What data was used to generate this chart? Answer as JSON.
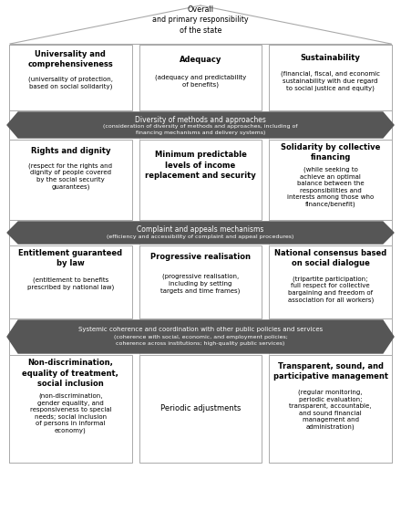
{
  "bg_color": "#ffffff",
  "arrow_fc": "#565656",
  "box_ec": "#aaaaaa",
  "title_text": "Overall\nand primary responsibility\nof the state",
  "pillar_boxes": [
    {
      "title": "Universality and\ncomprehensiveness",
      "body": "(universality of protection,\nbased on social solidarity)"
    },
    {
      "title": "Adequacy",
      "body": "(adequacy and predictability\nof benefits)"
    },
    {
      "title": "Sustainability",
      "body": "(financial, fiscal, and economic\nsustainability with due regard\nto social justice and equity)"
    }
  ],
  "arrow1_title": "Diversity of methods and approaches",
  "arrow1_body": "(consideration of diversity of methods and approaches, including of\nfinancing mechanisms and delivery systems)",
  "row2_boxes": [
    {
      "title": "Rights and dignity",
      "body": "(respect for the rights and\ndignity of people covered\nby the social security\nguarantees)"
    },
    {
      "title": "Minimum predictable\nlevels of income\nreplacement and security",
      "body": ""
    },
    {
      "title": "Solidarity by collective\nfinancing",
      "body": "(while seeking to\nachieve an optimal\nbalance between the\nresponsibilities and\ninterests among those who\nfinance/benefit)"
    }
  ],
  "arrow2_title": "Complaint and appeals mechanisms",
  "arrow2_body": "(efficiency and accessibility of complaint and appeal procedures)",
  "row3_boxes": [
    {
      "title": "Entitlement guaranteed\nby law",
      "body": "(entitlement to benefits\nprescribed by national law)"
    },
    {
      "title": "Progressive realisation",
      "body": "(progressive realisation,\nincluding by setting\ntargets and time frames)"
    },
    {
      "title": "National consensus based\non social dialogue",
      "body": "(tripartite participation;\nfull respect for collective\nbargaining and freedom of\nassociation for all workers)"
    }
  ],
  "arrow3_title": "Systemic coherence and coordination with other public policies and services",
  "arrow3_body": "(coherence with social, economic, and employment policies;\ncoherence across institutions; high-quality public services)",
  "row4_boxes": [
    {
      "title": "Non-discrimination,\nequality of treatment,\nsocial inclusion",
      "body": "(non-discrimination,\ngender equality, and\nresponsiveness to special\nneeds; social inclusion\nof persons in informal\neconomy)"
    },
    {
      "title": "",
      "body": "Periodic adjustments"
    },
    {
      "title": "Transparent, sound, and\nparticipative management",
      "body": "(regular monitoring,\nperiodic evaluation;\ntransparent, accountable,\nand sound financial\nmanagement and\nadministration)"
    }
  ]
}
